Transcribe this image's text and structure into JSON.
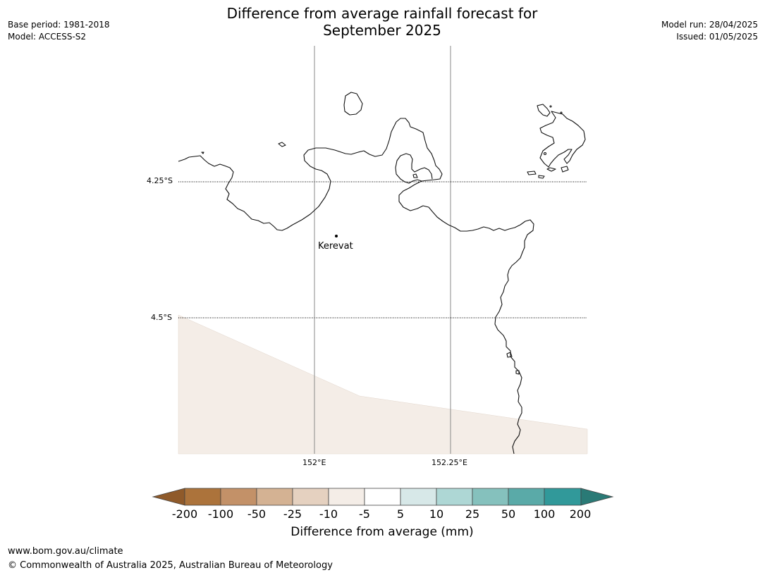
{
  "title": {
    "line1": "Difference from average rainfall forecast for",
    "line2": "September 2025"
  },
  "meta_left": {
    "base_period": "Base period: 1981-2018",
    "model": "Model: ACCESS-S2"
  },
  "meta_right": {
    "model_run": "Model run: 28/04/2025",
    "issued": "Issued: 01/05/2025"
  },
  "map": {
    "latitudes": [
      "4.25°S",
      "4.5°S"
    ],
    "longitudes": [
      "152°E",
      "152.25°E"
    ],
    "place": "Kerevat",
    "forecast_shading_category": "-10 to -5"
  },
  "colorbar": {
    "label": "Difference from average (mm)",
    "ticks": [
      "-200",
      "-100",
      "-50",
      "-25",
      "-10",
      "-5",
      "5",
      "10",
      "25",
      "50",
      "100",
      "200"
    ],
    "colors": {
      "below_min": "#8f5a2a",
      "c1": "#ac733b",
      "c2": "#c39168",
      "c3": "#d4b293",
      "c4": "#e5d1c0",
      "c5": "#f4ede7",
      "c6": "#ffffff",
      "c7": "#d7e8e8",
      "c8": "#aed7d5",
      "c9": "#85c1bd",
      "c10": "#5aaaa8",
      "c11": "#31999a",
      "above_max": "#2a7a76"
    }
  },
  "footer": {
    "url": "www.bom.gov.au/climate",
    "copyright": "© Commonwealth of Australia 2025, Australian Bureau of Meteorology"
  }
}
